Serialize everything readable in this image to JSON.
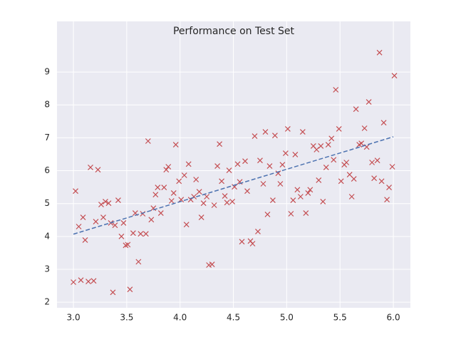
{
  "chart_data": {
    "type": "scatter",
    "title": "Performance on Test Set",
    "xlim": [
      2.846,
      6.16
    ],
    "ylim": [
      1.83,
      10.54
    ],
    "xticks": [
      {
        "value": 3,
        "label": "3.0"
      },
      {
        "value": 3.5,
        "label": "3.5"
      },
      {
        "value": 4,
        "label": "4.0"
      },
      {
        "value": 4.5,
        "label": "4.5"
      },
      {
        "value": 5,
        "label": "5.0"
      },
      {
        "value": 5.5,
        "label": "5.5"
      },
      {
        "value": 6,
        "label": "6.0"
      }
    ],
    "yticks": [
      2,
      3,
      4,
      5,
      6,
      7,
      8,
      9
    ],
    "grid": true,
    "series": [
      {
        "type": "scatter",
        "color": "#c44e52",
        "x": [
          3.0,
          3.02,
          3.05,
          3.07,
          3.09,
          3.11,
          3.14,
          3.16,
          3.19,
          3.21,
          3.23,
          3.26,
          3.28,
          3.3,
          3.33,
          3.35,
          3.37,
          3.39,
          3.42,
          3.45,
          3.47,
          3.49,
          3.51,
          3.53,
          3.56,
          3.58,
          3.61,
          3.63,
          3.65,
          3.68,
          3.7,
          3.73,
          3.75,
          3.77,
          3.79,
          3.82,
          3.85,
          3.87,
          3.89,
          3.92,
          3.94,
          3.96,
          3.99,
          4.01,
          4.04,
          4.06,
          4.08,
          4.1,
          4.13,
          4.15,
          4.18,
          4.2,
          4.22,
          4.25,
          4.27,
          4.3,
          4.32,
          4.35,
          4.37,
          4.39,
          4.42,
          4.44,
          4.46,
          4.49,
          4.51,
          4.54,
          4.56,
          4.58,
          4.61,
          4.63,
          4.66,
          4.68,
          4.7,
          4.73,
          4.75,
          4.78,
          4.8,
          4.82,
          4.84,
          4.87,
          4.89,
          4.92,
          4.94,
          4.96,
          4.99,
          5.01,
          5.04,
          5.06,
          5.08,
          5.1,
          5.13,
          5.15,
          5.18,
          5.2,
          5.22,
          5.25,
          5.28,
          5.3,
          5.32,
          5.34,
          5.37,
          5.39,
          5.42,
          5.44,
          5.46,
          5.49,
          5.51,
          5.54,
          5.56,
          5.59,
          5.61,
          5.63,
          5.65,
          5.68,
          5.7,
          5.73,
          5.75,
          5.77,
          5.8,
          5.82,
          5.85,
          5.87,
          5.89,
          5.91,
          5.94,
          5.96,
          5.99,
          6.01
        ],
        "values": [
          2.61,
          5.38,
          4.3,
          2.67,
          4.58,
          3.89,
          2.63,
          6.1,
          2.65,
          4.45,
          6.03,
          4.97,
          4.58,
          5.06,
          5.01,
          4.41,
          2.3,
          4.34,
          5.1,
          4.0,
          4.41,
          3.73,
          3.75,
          2.39,
          4.1,
          4.71,
          3.23,
          4.08,
          4.69,
          4.08,
          6.9,
          4.51,
          4.86,
          5.27,
          5.49,
          4.71,
          5.49,
          6.03,
          6.12,
          5.08,
          5.32,
          6.79,
          5.68,
          5.12,
          5.86,
          4.36,
          6.2,
          5.12,
          5.21,
          5.73,
          5.36,
          4.58,
          5.01,
          5.21,
          3.13,
          3.15,
          4.95,
          6.14,
          6.81,
          5.68,
          5.23,
          5.03,
          6.01,
          5.06,
          5.51,
          6.2,
          5.66,
          3.84,
          6.29,
          5.38,
          3.86,
          3.78,
          7.05,
          4.15,
          6.31,
          5.6,
          7.18,
          4.67,
          6.14,
          5.1,
          7.07,
          5.92,
          5.6,
          6.18,
          6.53,
          7.27,
          4.69,
          5.1,
          6.49,
          5.42,
          5.21,
          7.18,
          4.71,
          5.32,
          5.42,
          6.75,
          6.64,
          5.71,
          6.75,
          5.06,
          6.1,
          6.79,
          6.98,
          6.33,
          8.46,
          7.27,
          5.68,
          6.18,
          6.25,
          5.88,
          5.21,
          5.75,
          7.87,
          6.79,
          6.83,
          7.29,
          6.72,
          8.09,
          6.25,
          5.77,
          6.31,
          9.59,
          5.68,
          7.46,
          5.12,
          5.49,
          6.12,
          8.89
        ]
      },
      {
        "type": "line",
        "color": "#4c72b0",
        "x": [
          3.0,
          6.0
        ],
        "values": [
          4.07,
          7.03
        ]
      }
    ]
  }
}
